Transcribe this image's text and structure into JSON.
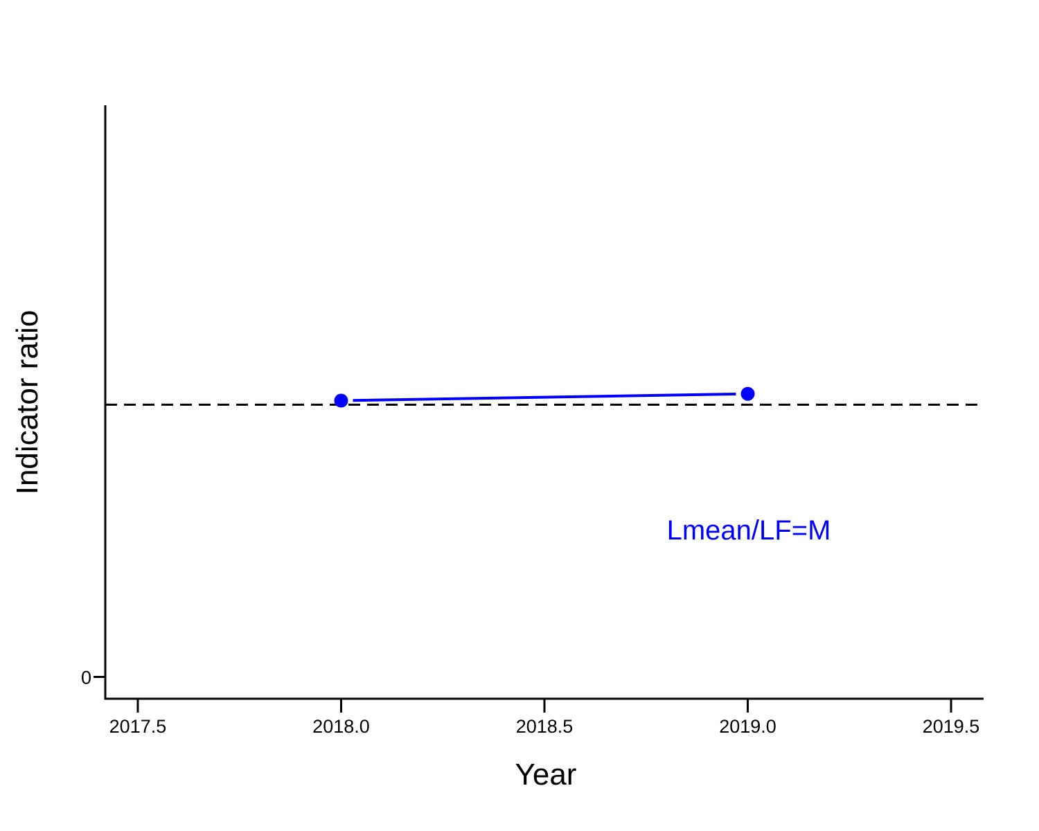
{
  "chart_data": {
    "type": "line",
    "title": "",
    "xlabel": "Year",
    "ylabel": "Indicator ratio",
    "xlim": [
      2017.42,
      2019.58
    ],
    "ylim": [
      -0.08,
      2.1
    ],
    "x_ticks": [
      2017.5,
      2018.0,
      2018.5,
      2019.0,
      2019.5
    ],
    "x_tick_labels": [
      "2017.5",
      "2018.0",
      "2018.5",
      "2019.0",
      "2019.5"
    ],
    "y_ticks": [
      0
    ],
    "y_tick_labels": [
      "0"
    ],
    "reference_line": {
      "y": 1.0,
      "style": "dashed",
      "color": "#000000"
    },
    "series": [
      {
        "x": [
          2018.0,
          2019.0
        ],
        "y": [
          1.015,
          1.04
        ],
        "color": "#0000ff",
        "marker": "circle"
      }
    ],
    "annotations": [
      {
        "text": "Lmean/LF=M",
        "color": "#0000ff"
      }
    ],
    "grid": false,
    "legend": "none"
  }
}
